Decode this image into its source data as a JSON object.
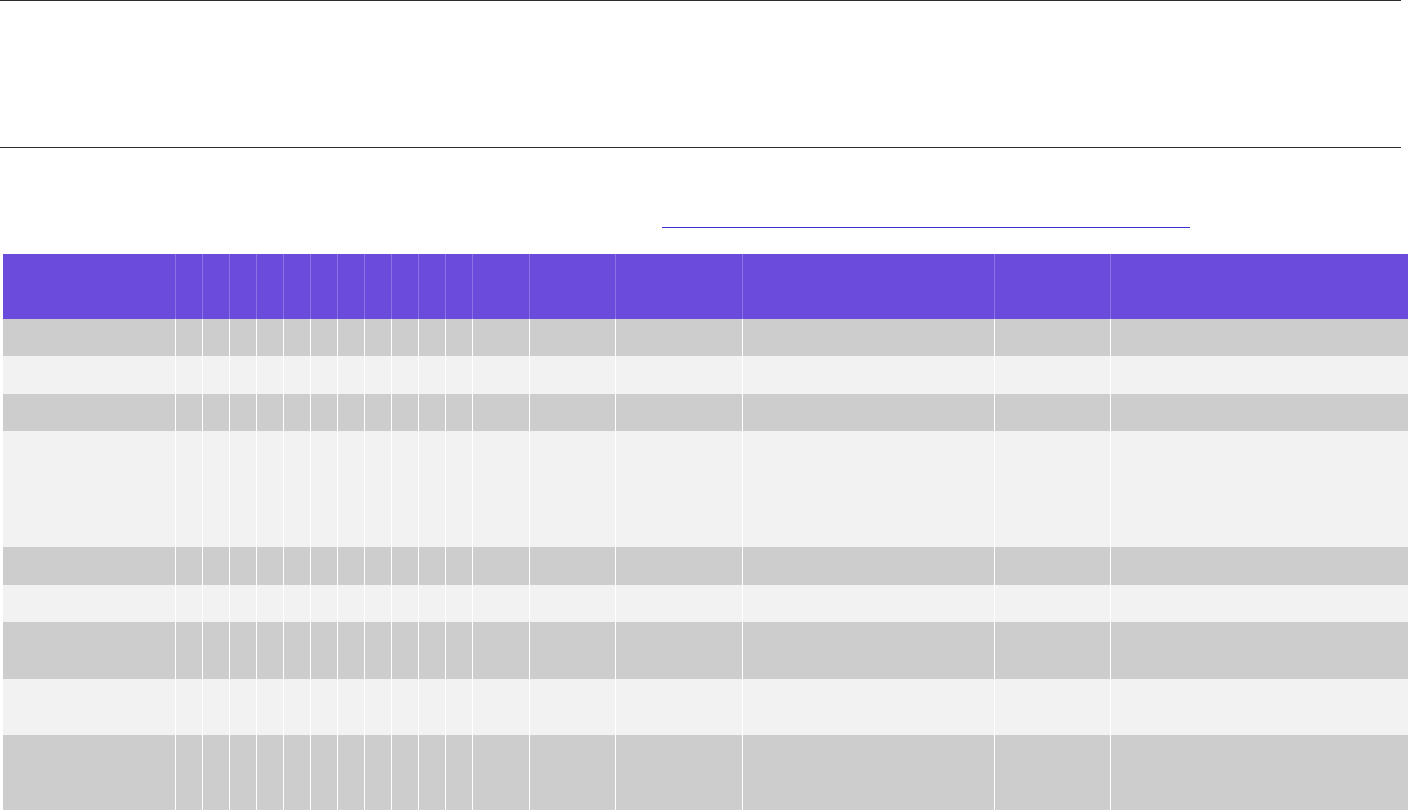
{
  "link": {
    "text": ""
  },
  "table": {
    "columns": [
      {
        "key": "c1",
        "header": ""
      },
      {
        "key": "c2",
        "header": ""
      },
      {
        "key": "c3",
        "header": ""
      },
      {
        "key": "c4",
        "header": ""
      },
      {
        "key": "c5",
        "header": ""
      },
      {
        "key": "c6",
        "header": ""
      },
      {
        "key": "c7",
        "header": ""
      },
      {
        "key": "c8",
        "header": ""
      },
      {
        "key": "c9",
        "header": ""
      },
      {
        "key": "c10",
        "header": ""
      },
      {
        "key": "c11",
        "header": ""
      },
      {
        "key": "c12",
        "header": ""
      },
      {
        "key": "c13",
        "header": ""
      },
      {
        "key": "c14",
        "header": ""
      },
      {
        "key": "c15",
        "header": ""
      },
      {
        "key": "c16",
        "header": ""
      },
      {
        "key": "c17",
        "header": ""
      },
      {
        "key": "c18",
        "header": ""
      }
    ],
    "rows": [
      {
        "shade": "dark",
        "cells": [
          "",
          "",
          "",
          "",
          "",
          "",
          "",
          "",
          "",
          "",
          "",
          "",
          "",
          "",
          "",
          "",
          "",
          ""
        ]
      },
      {
        "shade": "light",
        "cells": [
          "",
          "",
          "",
          "",
          "",
          "",
          "",
          "",
          "",
          "",
          "",
          "",
          "",
          "",
          "",
          "",
          "",
          ""
        ]
      },
      {
        "shade": "dark",
        "cells": [
          "",
          "",
          "",
          "",
          "",
          "",
          "",
          "",
          "",
          "",
          "",
          "",
          "",
          "",
          "",
          "",
          "",
          ""
        ]
      },
      {
        "shade": "light",
        "cells": [
          "",
          "",
          "",
          "",
          "",
          "",
          "",
          "",
          "",
          "",
          "",
          "",
          "",
          "",
          "",
          "",
          "",
          ""
        ]
      },
      {
        "shade": "dark",
        "cells": [
          "",
          "",
          "",
          "",
          "",
          "",
          "",
          "",
          "",
          "",
          "",
          "",
          "",
          "",
          "",
          "",
          "",
          ""
        ]
      },
      {
        "shade": "light",
        "cells": [
          "",
          "",
          "",
          "",
          "",
          "",
          "",
          "",
          "",
          "",
          "",
          "",
          "",
          "",
          "",
          "",
          "",
          ""
        ]
      },
      {
        "shade": "dark",
        "cells": [
          "",
          "",
          "",
          "",
          "",
          "",
          "",
          "",
          "",
          "",
          "",
          "",
          "",
          "",
          "",
          "",
          "",
          ""
        ]
      },
      {
        "shade": "light",
        "cells": [
          "",
          "",
          "",
          "",
          "",
          "",
          "",
          "",
          "",
          "",
          "",
          "",
          "",
          "",
          "",
          "",
          "",
          ""
        ]
      },
      {
        "shade": "dark",
        "cells": [
          "",
          "",
          "",
          "",
          "",
          "",
          "",
          "",
          "",
          "",
          "",
          "",
          "",
          "",
          "",
          "",
          "",
          ""
        ]
      }
    ]
  },
  "colors": {
    "header_bg": "#6a4bdb",
    "row_dark": "#cdcdcd",
    "row_light": "#f2f2f2",
    "link": "#3b2fd0"
  }
}
